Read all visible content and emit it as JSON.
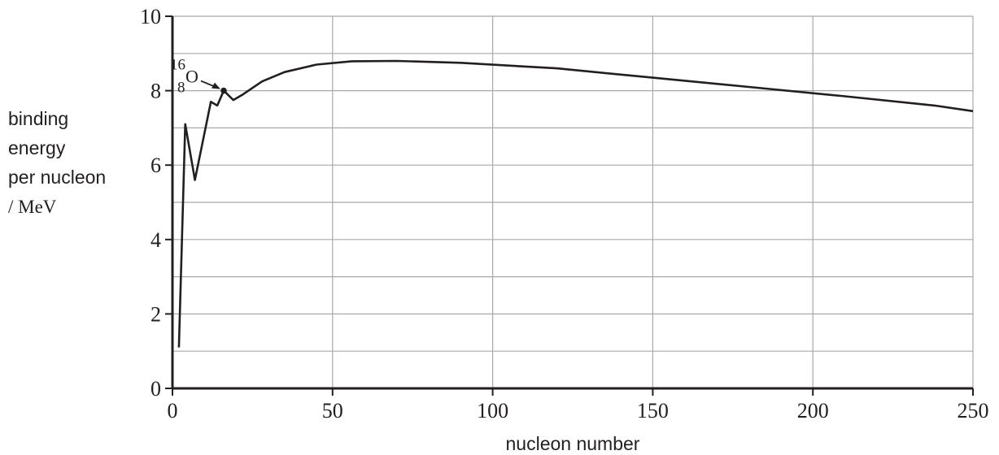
{
  "chart_data": {
    "type": "line",
    "xlabel": "nucleon number",
    "ylabel_lines": [
      "binding",
      "energy",
      "per nucleon"
    ],
    "ylabel_unit": "/ MeV",
    "xlim": [
      0,
      250
    ],
    "ylim": [
      0,
      10
    ],
    "x_ticks": [
      "0",
      "50",
      "100",
      "150",
      "200",
      "250"
    ],
    "y_ticks": [
      "0",
      "2",
      "4",
      "6",
      "8",
      "10"
    ],
    "grid": true,
    "series": [
      {
        "x": [
          2,
          4,
          7,
          12,
          14,
          16,
          19,
          22,
          28,
          35,
          45,
          56,
          70,
          90,
          120,
          150,
          180,
          210,
          238,
          250
        ],
        "y": [
          1.1,
          7.1,
          5.6,
          7.7,
          7.6,
          8.0,
          7.75,
          7.9,
          8.25,
          8.5,
          8.7,
          8.79,
          8.8,
          8.75,
          8.6,
          8.35,
          8.1,
          7.85,
          7.6,
          7.45
        ]
      }
    ],
    "annotations": [
      {
        "mass_number": "16",
        "atomic_number": "8",
        "symbol": "O",
        "x": 16,
        "y": 8.0
      }
    ],
    "colors": {
      "line": "#231f20",
      "grid": "#a8a9ac",
      "axis": "#231f20"
    }
  }
}
